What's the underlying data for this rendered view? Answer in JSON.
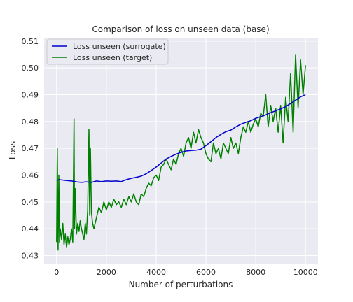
{
  "chart_data": {
    "type": "line",
    "title": "Comparison of loss on unseen data (base)",
    "xlabel": "Number of perturbations",
    "ylabel": "Loss",
    "xlim": [
      -500,
      10500
    ],
    "ylim": [
      0.427,
      0.511
    ],
    "xticks": [
      0,
      2000,
      4000,
      6000,
      8000,
      10000
    ],
    "xtick_labels": [
      "0",
      "2000",
      "4000",
      "6000",
      "8000",
      "10000"
    ],
    "yticks": [
      0.43,
      0.44,
      0.45,
      0.46,
      0.47,
      0.48,
      0.49,
      0.5,
      0.51
    ],
    "ytick_labels": [
      "0.43",
      "0.44",
      "0.45",
      "0.46",
      "0.47",
      "0.48",
      "0.49",
      "0.50",
      "0.51"
    ],
    "grid": true,
    "legend_position": "upper-left",
    "background_color": "#eaeaf2",
    "series": [
      {
        "name": "Loss unseen (surrogate)",
        "color": "#0000cc",
        "x": [
          0,
          100,
          200,
          400,
          600,
          800,
          1000,
          1200,
          1400,
          1600,
          1800,
          2000,
          2200,
          2400,
          2600,
          2800,
          3000,
          3200,
          3400,
          3600,
          3800,
          4000,
          4200,
          4400,
          4600,
          4800,
          5000,
          5200,
          5400,
          5600,
          5800,
          6000,
          6200,
          6400,
          6600,
          6800,
          7000,
          7200,
          7400,
          7600,
          7800,
          8000,
          8200,
          8400,
          8600,
          8800,
          9000,
          9200,
          9400,
          9600,
          9800,
          10000
        ],
        "y": [
          0.458,
          0.4583,
          0.4582,
          0.458,
          0.4578,
          0.4575,
          0.4573,
          0.4575,
          0.4573,
          0.4578,
          0.4576,
          0.4578,
          0.4577,
          0.4578,
          0.4576,
          0.4583,
          0.4588,
          0.4592,
          0.4596,
          0.4605,
          0.4617,
          0.463,
          0.4645,
          0.466,
          0.467,
          0.4678,
          0.4685,
          0.469,
          0.4692,
          0.4693,
          0.4697,
          0.471,
          0.4725,
          0.474,
          0.4752,
          0.4762,
          0.4768,
          0.478,
          0.479,
          0.4797,
          0.4803,
          0.4812,
          0.4818,
          0.4825,
          0.4833,
          0.484,
          0.4847,
          0.4856,
          0.4867,
          0.488,
          0.4892,
          0.49
        ]
      },
      {
        "name": "Loss unseen (target)",
        "color": "#008000",
        "x": [
          0,
          30,
          60,
          90,
          120,
          150,
          200,
          250,
          300,
          350,
          400,
          450,
          500,
          550,
          600,
          650,
          700,
          720,
          750,
          800,
          850,
          900,
          950,
          1000,
          1050,
          1100,
          1150,
          1200,
          1250,
          1300,
          1330,
          1360,
          1400,
          1450,
          1500,
          1600,
          1700,
          1800,
          1900,
          2000,
          2100,
          2200,
          2300,
          2400,
          2500,
          2600,
          2700,
          2800,
          2900,
          3000,
          3100,
          3200,
          3300,
          3400,
          3500,
          3600,
          3700,
          3800,
          3900,
          4000,
          4100,
          4200,
          4300,
          4400,
          4500,
          4600,
          4700,
          4800,
          4900,
          5000,
          5100,
          5200,
          5300,
          5400,
          5500,
          5600,
          5700,
          5800,
          5900,
          6000,
          6100,
          6200,
          6300,
          6400,
          6500,
          6600,
          6700,
          6800,
          6900,
          7000,
          7100,
          7200,
          7300,
          7400,
          7500,
          7600,
          7700,
          7800,
          7900,
          8000,
          8100,
          8200,
          8300,
          8400,
          8500,
          8600,
          8700,
          8800,
          8900,
          9000,
          9100,
          9200,
          9300,
          9400,
          9500,
          9600,
          9700,
          9800,
          9900,
          10000
        ],
        "y": [
          0.435,
          0.47,
          0.432,
          0.46,
          0.435,
          0.44,
          0.436,
          0.442,
          0.434,
          0.438,
          0.433,
          0.437,
          0.434,
          0.436,
          0.44,
          0.435,
          0.481,
          0.44,
          0.455,
          0.438,
          0.442,
          0.439,
          0.443,
          0.44,
          0.438,
          0.436,
          0.442,
          0.438,
          0.447,
          0.477,
          0.445,
          0.47,
          0.446,
          0.442,
          0.44,
          0.444,
          0.448,
          0.446,
          0.45,
          0.447,
          0.45,
          0.448,
          0.451,
          0.449,
          0.45,
          0.448,
          0.451,
          0.449,
          0.452,
          0.45,
          0.453,
          0.45,
          0.449,
          0.453,
          0.452,
          0.455,
          0.457,
          0.456,
          0.459,
          0.46,
          0.458,
          0.463,
          0.464,
          0.466,
          0.464,
          0.462,
          0.466,
          0.464,
          0.468,
          0.47,
          0.467,
          0.472,
          0.474,
          0.47,
          0.476,
          0.472,
          0.477,
          0.474,
          0.472,
          0.468,
          0.466,
          0.465,
          0.472,
          0.468,
          0.47,
          0.466,
          0.472,
          0.47,
          0.468,
          0.474,
          0.47,
          0.472,
          0.468,
          0.474,
          0.478,
          0.476,
          0.48,
          0.476,
          0.479,
          0.481,
          0.478,
          0.483,
          0.482,
          0.49,
          0.478,
          0.486,
          0.48,
          0.485,
          0.476,
          0.486,
          0.472,
          0.489,
          0.48,
          0.498,
          0.476,
          0.505,
          0.485,
          0.503,
          0.49,
          0.501
        ]
      }
    ]
  }
}
